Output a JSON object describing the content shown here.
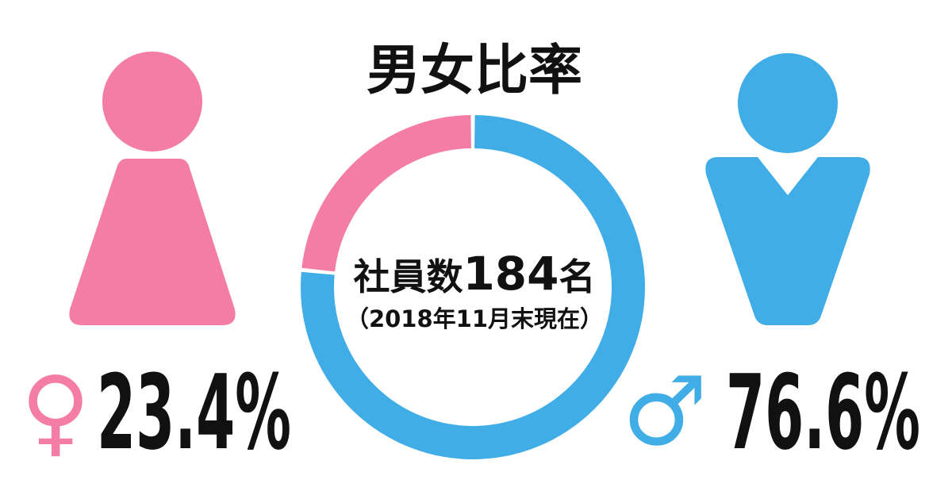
{
  "chart_data": {
    "type": "donut",
    "title": "男女比率",
    "center_label": "社員数",
    "total": 184,
    "total_unit": "名",
    "note": "（2018年11月末現在）",
    "categories": [
      "♂",
      "♀"
    ],
    "values": [
      76.6,
      23.4
    ],
    "value_labels": [
      "76.6%",
      "23.4%"
    ],
    "colors": [
      "#41ade6",
      "#f47da6"
    ]
  }
}
